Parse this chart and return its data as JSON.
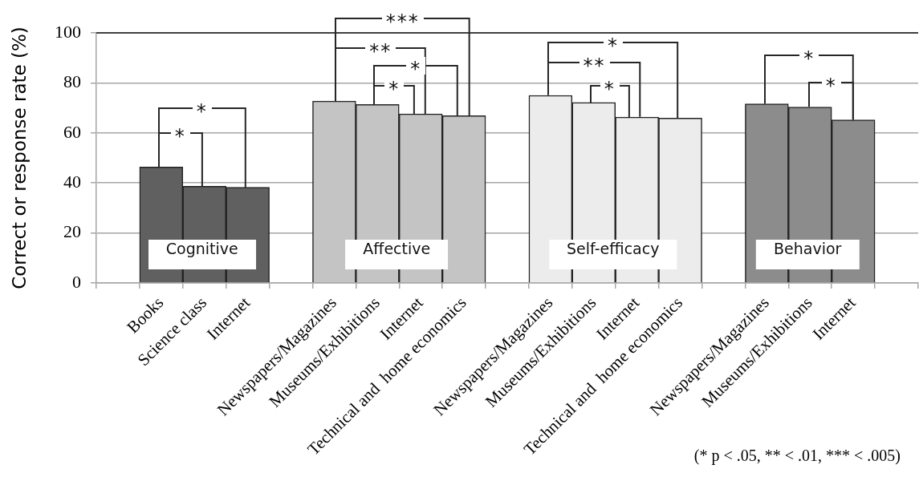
{
  "chart_data": {
    "type": "bar",
    "ylabel": "Correct or response rate (%)",
    "categories": [
      null,
      "Books",
      "Science class",
      "Internet",
      null,
      "Newspapers/Magazines",
      "Museums/Exhibitions",
      "Internet",
      "Technical and  home economics",
      null,
      "Newspapers/Magazines",
      "Museums/Exhibitions",
      "Internet",
      "Technical and  home economics",
      null,
      "Newspapers/Magazines",
      "Museums/Exhibitions",
      "Internet",
      null
    ],
    "series": [
      {
        "name": "Cognitive",
        "color": "#606060",
        "values": [
          null,
          46.4,
          38.7,
          38.3,
          null,
          null,
          null,
          null,
          null,
          null,
          null,
          null,
          null,
          null,
          null,
          null,
          null,
          null,
          null
        ]
      },
      {
        "name": "Affective",
        "color": "#c4c4c4",
        "values": [
          null,
          null,
          null,
          null,
          null,
          72.7,
          71.4,
          67.6,
          66.9,
          null,
          null,
          null,
          null,
          null,
          null,
          null,
          null,
          null,
          null
        ]
      },
      {
        "name": "Self-efficacy",
        "color": "#ececec",
        "values": [
          null,
          null,
          null,
          null,
          null,
          null,
          null,
          null,
          null,
          null,
          75,
          72.2,
          66.3,
          65.9,
          null,
          null,
          null,
          null,
          null
        ]
      },
      {
        "name": "Behavior",
        "color": "#8c8c8c",
        "values": [
          null,
          null,
          null,
          null,
          null,
          null,
          null,
          null,
          null,
          null,
          null,
          null,
          null,
          null,
          null,
          71.6,
          70.3,
          65.2,
          null
        ]
      }
    ],
    "ylim": [
      0,
      100
    ],
    "yticks": [
      0,
      20,
      40,
      60,
      80,
      100
    ],
    "grid": "y",
    "ref_lines": [
      {
        "axis": "y",
        "value": 100,
        "color": "#404040"
      }
    ],
    "annotations": [
      {
        "text": "*",
        "y": 60
      },
      {
        "text": "*",
        "y": 70
      },
      "***",
      {
        "text": "**",
        "y": 94
      },
      {
        "text": "*",
        "y": 87
      },
      {
        "text": "*",
        "y": 79
      },
      {
        "text": "*",
        "y": 96
      },
      {
        "text": "**",
        "y": 88
      },
      {
        "text": "*",
        "y": 79
      },
      {
        "text": "*",
        "y": 91
      },
      {
        "text": "*",
        "y": 80
      },
      "(* p < .05, ** < .01, *** < .005)"
    ]
  }
}
